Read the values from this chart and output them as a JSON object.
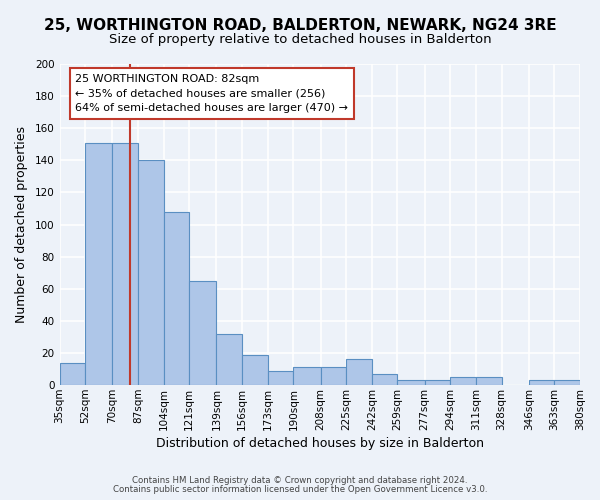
{
  "title": "25, WORTHINGTON ROAD, BALDERTON, NEWARK, NG24 3RE",
  "subtitle": "Size of property relative to detached houses in Balderton",
  "xlabel": "Distribution of detached houses by size in Balderton",
  "ylabel": "Number of detached properties",
  "bar_edges": [
    35,
    52,
    70,
    87,
    104,
    121,
    139,
    156,
    173,
    190,
    208,
    225,
    242,
    259,
    277,
    294,
    311,
    328,
    346,
    363,
    380
  ],
  "bar_heights": [
    14,
    151,
    151,
    140,
    108,
    65,
    32,
    19,
    9,
    11,
    11,
    16,
    7,
    3,
    3,
    5,
    5,
    0,
    3,
    3
  ],
  "bar_color": "#aec6e8",
  "bar_edge_color": "#5a8fc2",
  "vline_x": 82,
  "vline_color": "#c0392b",
  "ylim": [
    0,
    200
  ],
  "yticks": [
    0,
    20,
    40,
    60,
    80,
    100,
    120,
    140,
    160,
    180,
    200
  ],
  "annotation_title": "25 WORTHINGTON ROAD: 82sqm",
  "annotation_line1": "← 35% of detached houses are smaller (256)",
  "annotation_line2": "64% of semi-detached houses are larger (470) →",
  "annotation_box_color": "#ffffff",
  "annotation_box_edge": "#c0392b",
  "footer1": "Contains HM Land Registry data © Crown copyright and database right 2024.",
  "footer2": "Contains public sector information licensed under the Open Government Licence v3.0.",
  "bg_color": "#edf2f9",
  "grid_color": "#ffffff",
  "title_fontsize": 11,
  "subtitle_fontsize": 9.5,
  "axis_label_fontsize": 9,
  "tick_fontsize": 7.5
}
